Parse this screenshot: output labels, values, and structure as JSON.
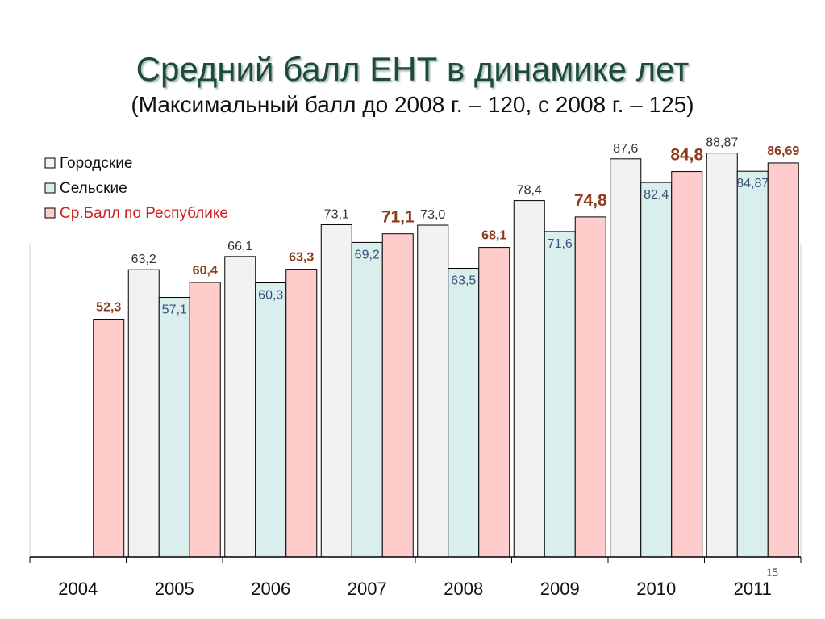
{
  "title": "Средний балл ЕНТ в динамике лет",
  "subtitle": "(Максимальный балл до 2008 г. – 120, с 2008 г. – 125)",
  "slide_number": "15",
  "chart_data": {
    "type": "bar",
    "categories": [
      "2004",
      "2005",
      "2006",
      "2007",
      "2008",
      "2009",
      "2010",
      "2011"
    ],
    "series": [
      {
        "name": "Городские",
        "color": "#f2f2f2",
        "label_color": "#333333",
        "values": [
          null,
          63.2,
          66.1,
          73.1,
          73.0,
          78.4,
          87.6,
          88.87
        ],
        "labels": [
          "",
          "63,2",
          "66,1",
          "73,1",
          "73,0",
          "78,4",
          "87,6",
          "88,87"
        ]
      },
      {
        "name": "Сельские",
        "color": "#daeeed",
        "label_color": "#34527a",
        "values": [
          null,
          57.1,
          60.3,
          69.2,
          63.5,
          71.6,
          82.4,
          84.87
        ],
        "labels": [
          "",
          "57,1",
          "60,3",
          "69,2",
          "63,5",
          "71,6",
          "82,4",
          "84,87"
        ]
      },
      {
        "name": "Ср.Балл по Республике",
        "color": "#ffcccc",
        "label_color": "#8b3a1a",
        "legend_text_color": "#cc2222",
        "values": [
          52.3,
          60.4,
          63.3,
          71.1,
          68.1,
          74.8,
          84.8,
          86.69
        ],
        "labels": [
          "52,3",
          "60,4",
          "63,3",
          "71,1",
          "68,1",
          "74,8",
          "84,8",
          "86,69"
        ]
      }
    ],
    "ylim": [
      0,
      100
    ],
    "grid": false,
    "legend_position": "top-left"
  }
}
